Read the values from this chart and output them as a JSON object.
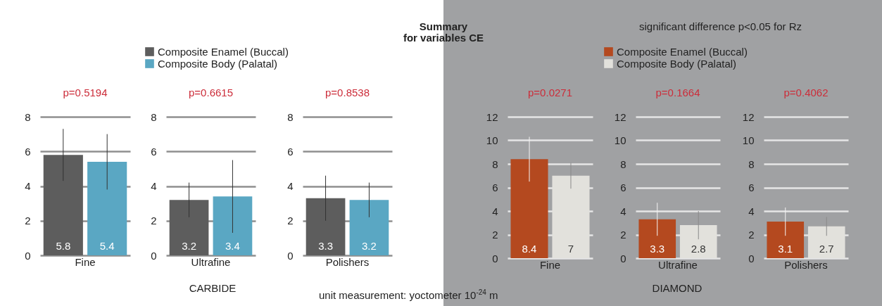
{
  "chart_data": [
    {
      "type": "bar",
      "title": "p=0.5194",
      "categories": [
        "Fine"
      ],
      "series": [
        {
          "name": "Composite Enamel (Buccal)",
          "color": "#5d5d5d",
          "values": [
            5.8
          ],
          "errors": [
            [
              4.3,
              7.3
            ]
          ]
        },
        {
          "name": "Composite Body (Palatal)",
          "color": "#5aa7c3",
          "values": [
            5.4
          ],
          "errors": [
            [
              3.8,
              7.0
            ]
          ]
        }
      ],
      "ylim": [
        0,
        8
      ],
      "yticks": [
        0,
        2,
        4,
        6,
        8
      ],
      "grid": "y",
      "data_labels": true,
      "legend": "top",
      "annotations": [
        "Summary\nfor variables CE",
        "CARBIDE",
        "unit measurement: yoctometer 10$^{-24}$ m"
      ]
    },
    {
      "type": "bar",
      "title": "p=0.6615",
      "categories": [
        "Ultrafine"
      ],
      "series": [
        {
          "color": "#5d5d5d",
          "values": [
            3.2
          ],
          "errors": [
            [
              2.2,
              4.2
            ]
          ]
        },
        {
          "color": "#5aa7c3",
          "values": [
            3.4
          ],
          "errors": [
            [
              1.3,
              5.5
            ]
          ]
        }
      ],
      "ylim": [
        0,
        8
      ],
      "yticks": [
        0,
        2,
        4,
        6,
        8
      ],
      "grid": "y",
      "data_labels": true
    },
    {
      "type": "bar",
      "title": "p=0.8538",
      "categories": [
        "Polishers"
      ],
      "series": [
        {
          "color": "#5d5d5d",
          "values": [
            3.3
          ],
          "errors": [
            [
              2.0,
              4.6
            ]
          ]
        },
        {
          "color": "#5aa7c3",
          "values": [
            3.2
          ],
          "errors": [
            [
              2.2,
              4.2
            ]
          ]
        }
      ],
      "ylim": [
        0,
        8
      ],
      "yticks": [
        0,
        2,
        4,
        6,
        8
      ],
      "grid": "y",
      "data_labels": true
    },
    {
      "type": "bar",
      "title": "p=0.0271",
      "categories": [
        "Fine"
      ],
      "series": [
        {
          "name": "Composite Enamel (Buccal)",
          "color": "#b4491f",
          "values": [
            8.4
          ],
          "errors": [
            [
              6.5,
              10.3
            ]
          ]
        },
        {
          "name": "Composite Body (Palatal)",
          "color": "#e2e1dc",
          "values": [
            7
          ],
          "errors": [
            [
              5.9,
              8.1
            ]
          ]
        }
      ],
      "ylim": [
        0,
        12
      ],
      "yticks": [
        0,
        2,
        4,
        6,
        8,
        10,
        12
      ],
      "grid": "y",
      "data_labels": true,
      "legend": "top",
      "annotations": [
        "significant difference p<0.05 for Rz",
        "DIAMOND"
      ]
    },
    {
      "type": "bar",
      "title": "p=0.1664",
      "categories": [
        "Ultrafine"
      ],
      "series": [
        {
          "color": "#b4491f",
          "values": [
            3.3
          ],
          "errors": [
            [
              1.9,
              4.7
            ]
          ]
        },
        {
          "color": "#e2e1dc",
          "values": [
            2.8
          ],
          "errors": [
            [
              1.6,
              4.0
            ]
          ]
        }
      ],
      "ylim": [
        0,
        12
      ],
      "yticks": [
        0,
        2,
        4,
        6,
        8,
        10,
        12
      ],
      "grid": "y",
      "data_labels": true
    },
    {
      "type": "bar",
      "title": "p=0.4062",
      "categories": [
        "Polishers"
      ],
      "series": [
        {
          "color": "#b4491f",
          "values": [
            3.1
          ],
          "errors": [
            [
              1.9,
              4.3
            ]
          ]
        },
        {
          "color": "#e2e1dc",
          "values": [
            2.7
          ],
          "errors": [
            [
              1.9,
              3.5
            ]
          ]
        }
      ],
      "ylim": [
        0,
        12
      ],
      "yticks": [
        0,
        2,
        4,
        6,
        8,
        10,
        12
      ],
      "grid": "y",
      "data_labels": true
    }
  ]
}
